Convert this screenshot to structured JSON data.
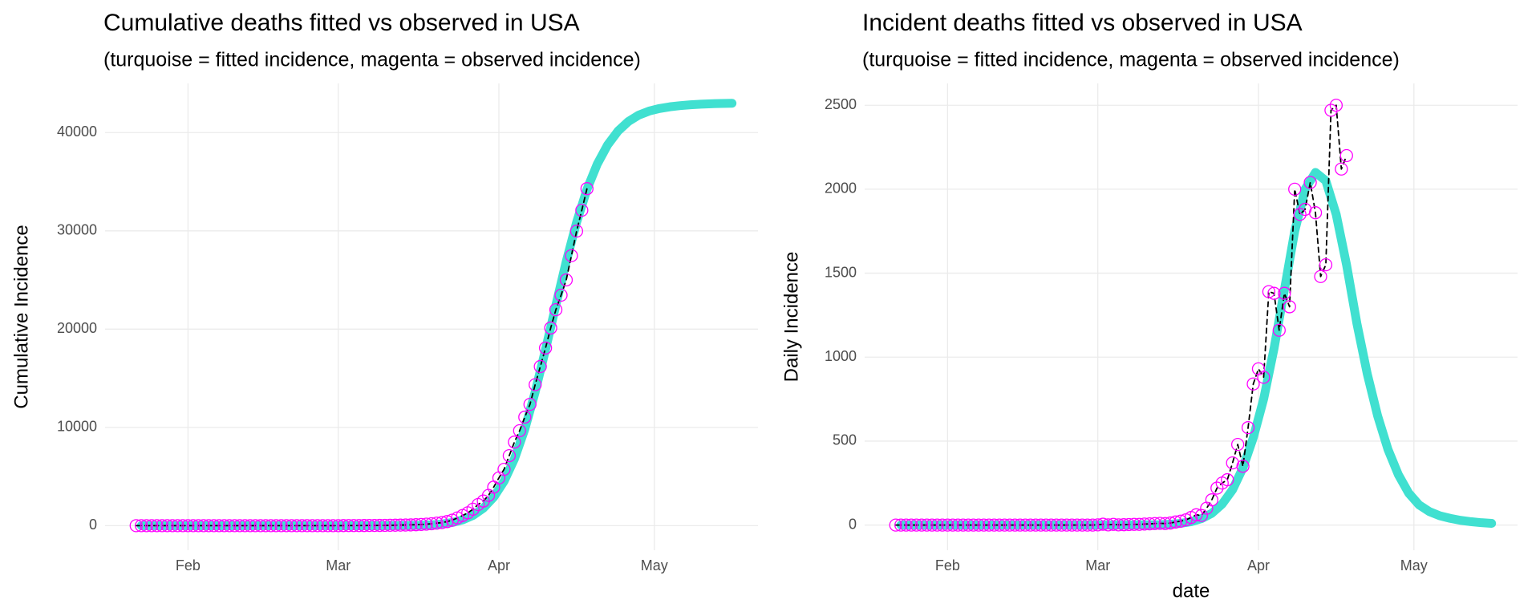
{
  "chart_data": [
    {
      "type": "line",
      "title": "Cumulative deaths fitted vs observed in USA",
      "subtitle": "(turquoise = fitted incidence, magenta = observed incidence)",
      "ylabel": "Cumulative Incidence",
      "xlim": [
        16,
        142
      ],
      "xticks": [
        {
          "value": 32,
          "label": "Feb"
        },
        {
          "value": 61,
          "label": "Mar"
        },
        {
          "value": 92,
          "label": "Apr"
        },
        {
          "value": 122,
          "label": "May"
        }
      ],
      "ylim": [
        -2500,
        45000
      ],
      "yticks": [
        0,
        10000,
        20000,
        30000,
        40000
      ],
      "grid": true,
      "series": [
        {
          "color": "#40E0D0",
          "linestyle": "solid",
          "x": [
            23,
            25,
            27,
            29,
            31,
            33,
            35,
            37,
            39,
            41,
            43,
            45,
            47,
            49,
            51,
            53,
            55,
            57,
            59,
            61,
            63,
            65,
            67,
            69,
            71,
            73,
            75,
            77,
            79,
            81,
            83,
            85,
            87,
            89,
            91,
            93,
            95,
            97,
            99,
            101,
            103,
            105,
            107,
            109,
            111,
            113,
            115,
            117,
            119,
            121,
            123,
            125,
            127,
            129,
            131,
            133,
            135,
            137
          ],
          "values": [
            0,
            0,
            0,
            0,
            0,
            0,
            0,
            0,
            0,
            0,
            0,
            0,
            0,
            0,
            0,
            0,
            0,
            0,
            0,
            0,
            0,
            0,
            0,
            2,
            4,
            9,
            19,
            41,
            84,
            166,
            318,
            588,
            1041,
            1776,
            2899,
            4519,
            6787,
            9811,
            13591,
            17911,
            22447,
            26875,
            30871,
            34219,
            36811,
            38755,
            40159,
            41131,
            41779,
            42189,
            42448,
            42621,
            42740,
            42826,
            42887,
            42930,
            42960,
            42982
          ]
        },
        {
          "color": "#FF00FF",
          "marker": "circle",
          "linestyle": "dashed",
          "line_color": "#000000",
          "x": [
            22,
            23,
            24,
            25,
            26,
            27,
            28,
            29,
            30,
            31,
            32,
            33,
            34,
            35,
            36,
            37,
            38,
            39,
            40,
            41,
            42,
            43,
            44,
            45,
            46,
            47,
            48,
            49,
            50,
            51,
            52,
            53,
            54,
            55,
            56,
            57,
            58,
            59,
            60,
            61,
            62,
            63,
            64,
            65,
            66,
            67,
            68,
            69,
            70,
            71,
            72,
            73,
            74,
            75,
            76,
            77,
            78,
            79,
            80,
            81,
            82,
            83,
            84,
            85,
            86,
            87,
            88,
            89,
            90,
            91,
            92,
            93,
            94,
            95,
            96,
            97,
            98,
            99,
            100,
            101,
            102,
            103,
            104,
            105,
            106,
            107,
            108,
            109
          ],
          "values": [
            0,
            0,
            0,
            0,
            0,
            0,
            0,
            0,
            0,
            0,
            0,
            0,
            0,
            0,
            0,
            0,
            0,
            0,
            0,
            0,
            0,
            0,
            0,
            0,
            0,
            0,
            0,
            0,
            0,
            0,
            0,
            0,
            0,
            0,
            0,
            0,
            0,
            0,
            0,
            1,
            6,
            7,
            11,
            12,
            14,
            17,
            21,
            25,
            31,
            38,
            47,
            57,
            66,
            78,
            96,
            119,
            150,
            195,
            256,
            313,
            413,
            563,
            783,
            1033,
            1303,
            1673,
            2153,
            2503,
            3083,
            3923,
            4853,
            5733,
            7123,
            8503,
            9663,
            11043,
            12343,
            14343,
            16193,
            18073,
            20113,
            21973,
            23453,
            25003,
            27473,
            29973,
            32093,
            34293
          ]
        }
      ]
    },
    {
      "type": "line",
      "title": "Incident deaths fitted vs observed in USA",
      "subtitle": "(turquoise = fitted incidence, magenta = observed incidence)",
      "ylabel": "Daily Incidence",
      "xlabel": "date",
      "xlim": [
        16,
        142
      ],
      "xticks": [
        {
          "value": 32,
          "label": "Feb"
        },
        {
          "value": 61,
          "label": "Mar"
        },
        {
          "value": 92,
          "label": "Apr"
        },
        {
          "value": 122,
          "label": "May"
        }
      ],
      "ylim": [
        -150,
        2630
      ],
      "yticks": [
        0,
        500,
        1000,
        1500,
        2000,
        2500
      ],
      "grid": true,
      "series": [
        {
          "color": "#40E0D0",
          "linestyle": "solid",
          "x": [
            23,
            25,
            27,
            29,
            31,
            33,
            35,
            37,
            39,
            41,
            43,
            45,
            47,
            49,
            51,
            53,
            55,
            57,
            59,
            61,
            63,
            65,
            67,
            69,
            71,
            73,
            75,
            77,
            79,
            81,
            83,
            85,
            87,
            89,
            91,
            93,
            95,
            97,
            99,
            101,
            103,
            105,
            107,
            109,
            111,
            113,
            115,
            117,
            119,
            121,
            123,
            125,
            127,
            129,
            131,
            133,
            135,
            137
          ],
          "values": [
            0,
            0,
            0,
            0,
            0,
            0,
            0,
            0,
            0,
            0,
            0,
            0,
            0,
            0,
            0,
            0,
            0,
            0,
            0,
            0,
            0,
            0,
            0,
            1,
            1,
            2,
            5,
            10,
            20,
            38,
            70,
            125,
            210,
            340,
            520,
            750,
            1050,
            1400,
            1750,
            2000,
            2100,
            2050,
            1850,
            1550,
            1200,
            900,
            650,
            450,
            300,
            190,
            120,
            80,
            55,
            40,
            28,
            20,
            14,
            10
          ]
        },
        {
          "color": "#FF00FF",
          "marker": "circle",
          "linestyle": "dashed",
          "line_color": "#000000",
          "x": [
            22,
            23,
            24,
            25,
            26,
            27,
            28,
            29,
            30,
            31,
            32,
            33,
            34,
            35,
            36,
            37,
            38,
            39,
            40,
            41,
            42,
            43,
            44,
            45,
            46,
            47,
            48,
            49,
            50,
            51,
            52,
            53,
            54,
            55,
            56,
            57,
            58,
            59,
            60,
            61,
            62,
            63,
            64,
            65,
            66,
            67,
            68,
            69,
            70,
            71,
            72,
            73,
            74,
            75,
            76,
            77,
            78,
            79,
            80,
            81,
            82,
            83,
            84,
            85,
            86,
            87,
            88,
            89,
            90,
            91,
            92,
            93,
            94,
            95,
            96,
            97,
            98,
            99,
            100,
            101,
            102,
            103,
            104,
            105,
            106,
            107,
            108,
            109
          ],
          "values": [
            0,
            0,
            0,
            0,
            0,
            0,
            0,
            0,
            0,
            0,
            0,
            0,
            0,
            0,
            0,
            0,
            0,
            0,
            0,
            0,
            0,
            0,
            0,
            0,
            0,
            0,
            0,
            0,
            0,
            0,
            0,
            0,
            0,
            0,
            0,
            0,
            0,
            0,
            0,
            1,
            5,
            1,
            4,
            1,
            2,
            3,
            4,
            4,
            6,
            7,
            9,
            10,
            9,
            12,
            18,
            23,
            31,
            45,
            61,
            57,
            100,
            150,
            220,
            250,
            270,
            370,
            480,
            350,
            580,
            840,
            930,
            880,
            1390,
            1380,
            1160,
            1380,
            1300,
            2000,
            1850,
            1880,
            2040,
            1860,
            1480,
            1550,
            2470,
            2500,
            2120,
            2200
          ]
        }
      ]
    }
  ]
}
